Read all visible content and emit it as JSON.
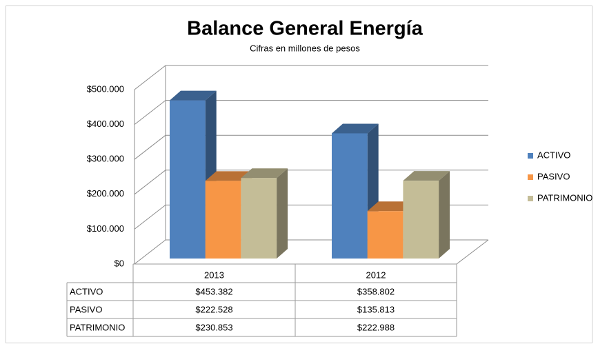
{
  "chart_data": {
    "type": "bar3d",
    "title": "Balance General Energía",
    "subtitle": "Cifras en millones de pesos",
    "categories": [
      "2013",
      "2012"
    ],
    "series": [
      {
        "name": "ACTIVO",
        "color": "#4f81bd",
        "values": [
          453382,
          358802
        ],
        "value_labels": [
          "$453.382",
          "$358.802"
        ]
      },
      {
        "name": "PASIVO",
        "color": "#f79646",
        "values": [
          222528,
          135813
        ],
        "value_labels": [
          "$222.528",
          "$135.813"
        ]
      },
      {
        "name": "PATRIMONIO",
        "color": "#c4bd97",
        "values": [
          230853,
          222988
        ],
        "value_labels": [
          "$230.853",
          "$222.988"
        ]
      }
    ],
    "ylim": [
      0,
      500000
    ],
    "yticks": [
      {
        "value": 0,
        "label": "$0"
      },
      {
        "value": 100000,
        "label": "$100.000"
      },
      {
        "value": 200000,
        "label": "$200.000"
      },
      {
        "value": 300000,
        "label": "$300.000"
      },
      {
        "value": 400000,
        "label": "$400.000"
      },
      {
        "value": 500000,
        "label": "$500.000"
      }
    ],
    "grid": true,
    "legend": "right"
  }
}
